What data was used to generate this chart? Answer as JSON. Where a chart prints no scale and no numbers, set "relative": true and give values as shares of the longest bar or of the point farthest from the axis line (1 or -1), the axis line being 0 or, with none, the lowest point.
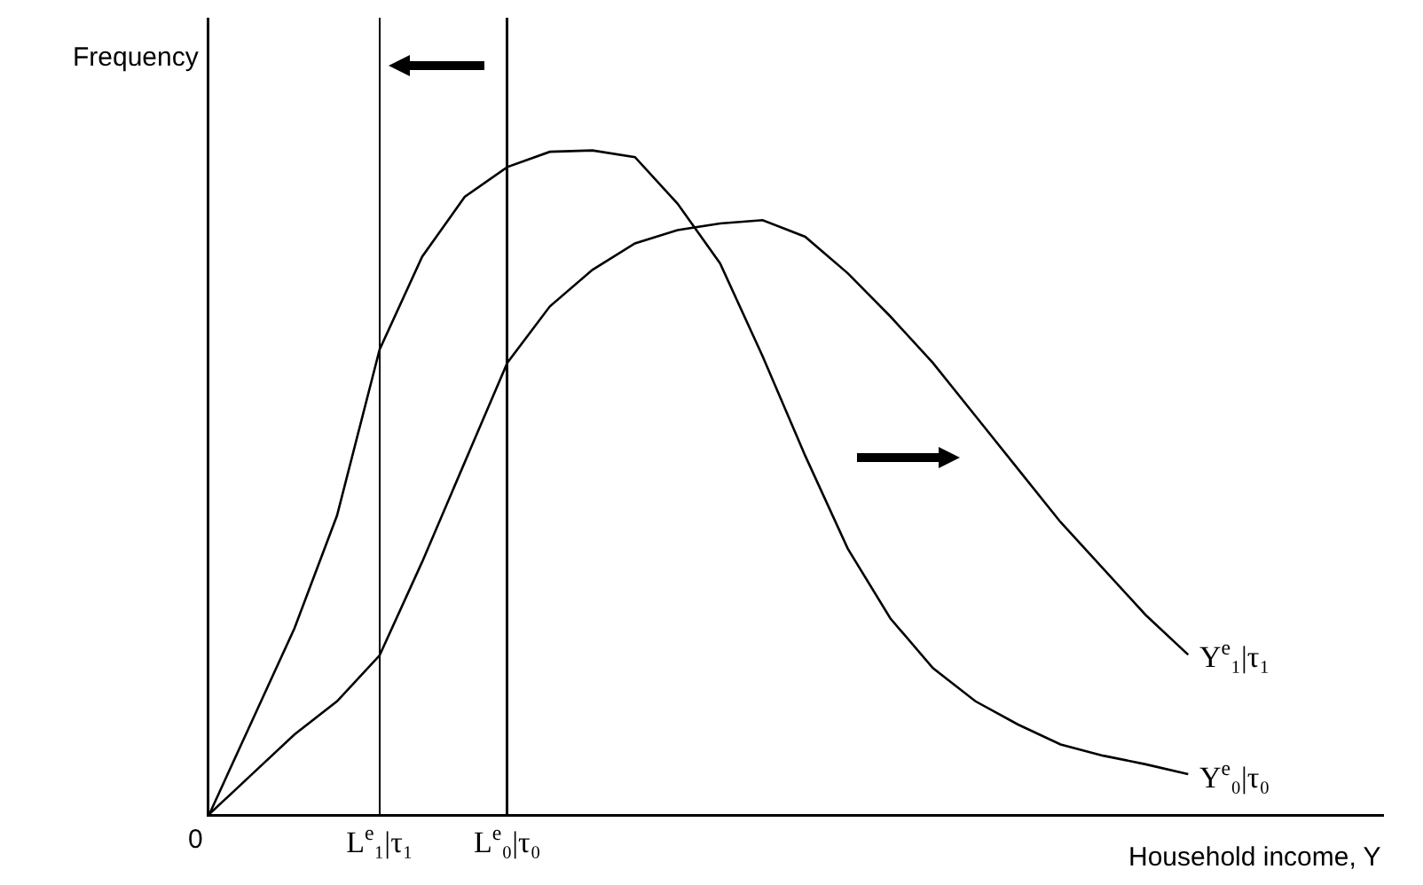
{
  "chart_data": {
    "type": "line",
    "relative": true,
    "xlabel": "Household income, Y",
    "ylabel": "Frequency",
    "annotations": [
      "0"
    ],
    "ylim": [
      0,
      1.2
    ],
    "grid": "x",
    "legend": false,
    "marker": "none",
    "line_style": "solid",
    "categories": [
      null,
      null,
      null,
      null,
      "L$^{e}$₁|τ₁",
      null,
      null,
      "L$^{e}$₀|τ₀",
      null,
      null,
      null,
      null,
      null,
      null,
      null,
      null,
      null,
      null,
      null,
      null,
      null,
      null,
      null,
      null
    ],
    "series": [
      {
        "name": "Y$^{e}$₁|τ₁",
        "color": "#000000",
        "values": [
          0,
          0.06,
          0.12,
          0.17,
          0.239,
          0.38,
          0.53,
          0.68,
          0.765,
          0.82,
          0.86,
          0.88,
          0.89,
          0.895,
          0.87,
          0.815,
          0.75,
          0.68,
          0.6,
          0.52,
          0.44,
          0.37,
          0.3,
          0.24
        ]
      },
      {
        "name": "Y$^{e}$₀|τ₀",
        "color": "#000000",
        "values": [
          0,
          0.14,
          0.28,
          0.45,
          0.7,
          0.84,
          0.93,
          0.975,
          0.998,
          1,
          0.99,
          0.92,
          0.83,
          0.69,
          0.54,
          0.4,
          0.295,
          0.22,
          0.17,
          0.135,
          0.105,
          0.088,
          0.075,
          0.06
        ]
      }
    ]
  }
}
